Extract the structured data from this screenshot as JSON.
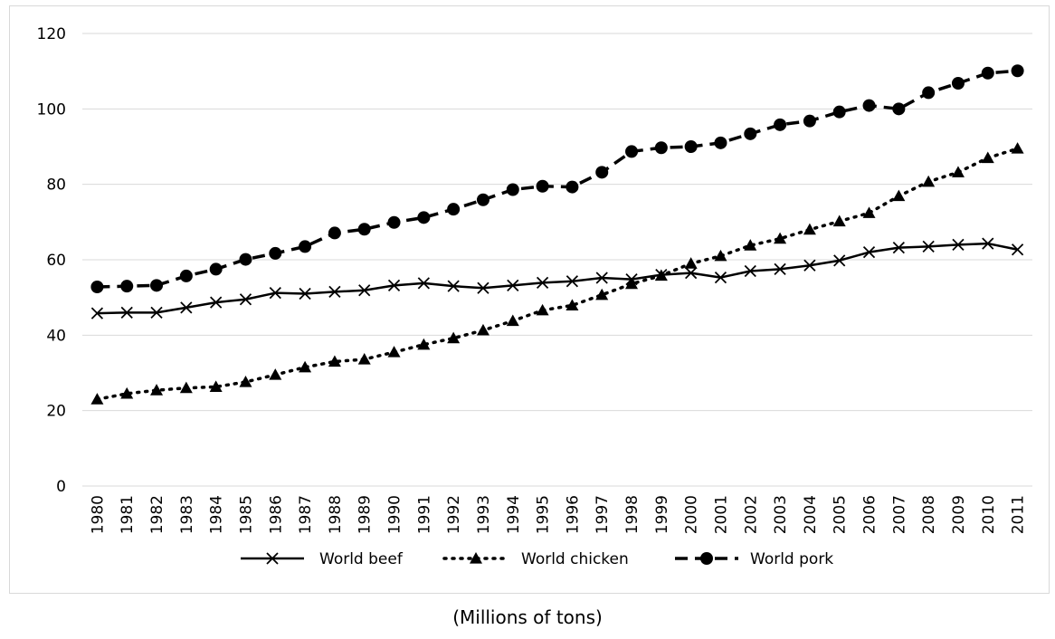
{
  "caption": "(Millions of tons)",
  "chart_data": {
    "type": "line",
    "title": "",
    "xlabel": "",
    "ylabel": "",
    "ylim": [
      0,
      120
    ],
    "yticks": [
      0,
      20,
      40,
      60,
      80,
      100,
      120
    ],
    "grid": "horizontal",
    "legend_position": "bottom",
    "categories": [
      "1980",
      "1981",
      "1982",
      "1983",
      "1984",
      "1985",
      "1986",
      "1987",
      "1988",
      "1989",
      "1990",
      "1991",
      "1992",
      "1993",
      "1994",
      "1995",
      "1996",
      "1997",
      "1998",
      "1999",
      "2000",
      "2001",
      "2002",
      "2003",
      "2004",
      "2005",
      "2006",
      "2007",
      "2008",
      "2009",
      "2010",
      "2011"
    ],
    "series": [
      {
        "name": "World beef",
        "line_style": "solid",
        "marker": "x",
        "color": "#000000",
        "values": [
          45.8,
          46.0,
          46.0,
          47.3,
          48.7,
          49.5,
          51.2,
          51.0,
          51.5,
          51.9,
          53.2,
          53.8,
          53.0,
          52.5,
          53.2,
          53.9,
          54.3,
          55.2,
          54.8,
          56.0,
          56.5,
          55.3,
          57.0,
          57.5,
          58.5,
          59.8,
          62.0,
          63.2,
          63.5,
          64.0,
          64.3,
          62.7
        ]
      },
      {
        "name": "World chicken",
        "line_style": "dotted",
        "marker": "triangle",
        "color": "#000000",
        "values": [
          23.0,
          24.5,
          25.4,
          26.0,
          26.3,
          27.6,
          29.5,
          31.5,
          33.0,
          33.6,
          35.5,
          37.5,
          39.2,
          41.3,
          43.8,
          46.6,
          47.9,
          50.7,
          53.6,
          55.8,
          59.0,
          61.0,
          63.8,
          65.6,
          68.0,
          70.2,
          72.4,
          76.9,
          80.7,
          83.2,
          87.0,
          89.5
        ]
      },
      {
        "name": "World pork",
        "line_style": "dashed",
        "marker": "circle",
        "color": "#000000",
        "values": [
          52.8,
          53.0,
          53.2,
          55.7,
          57.5,
          60.1,
          61.7,
          63.5,
          67.1,
          68.1,
          69.9,
          71.2,
          73.4,
          75.9,
          78.6,
          79.5,
          79.3,
          83.2,
          88.7,
          89.7,
          90.0,
          91.0,
          93.4,
          95.8,
          96.8,
          99.2,
          100.9,
          100.0,
          104.3,
          106.8,
          109.5,
          110.1
        ]
      }
    ]
  }
}
